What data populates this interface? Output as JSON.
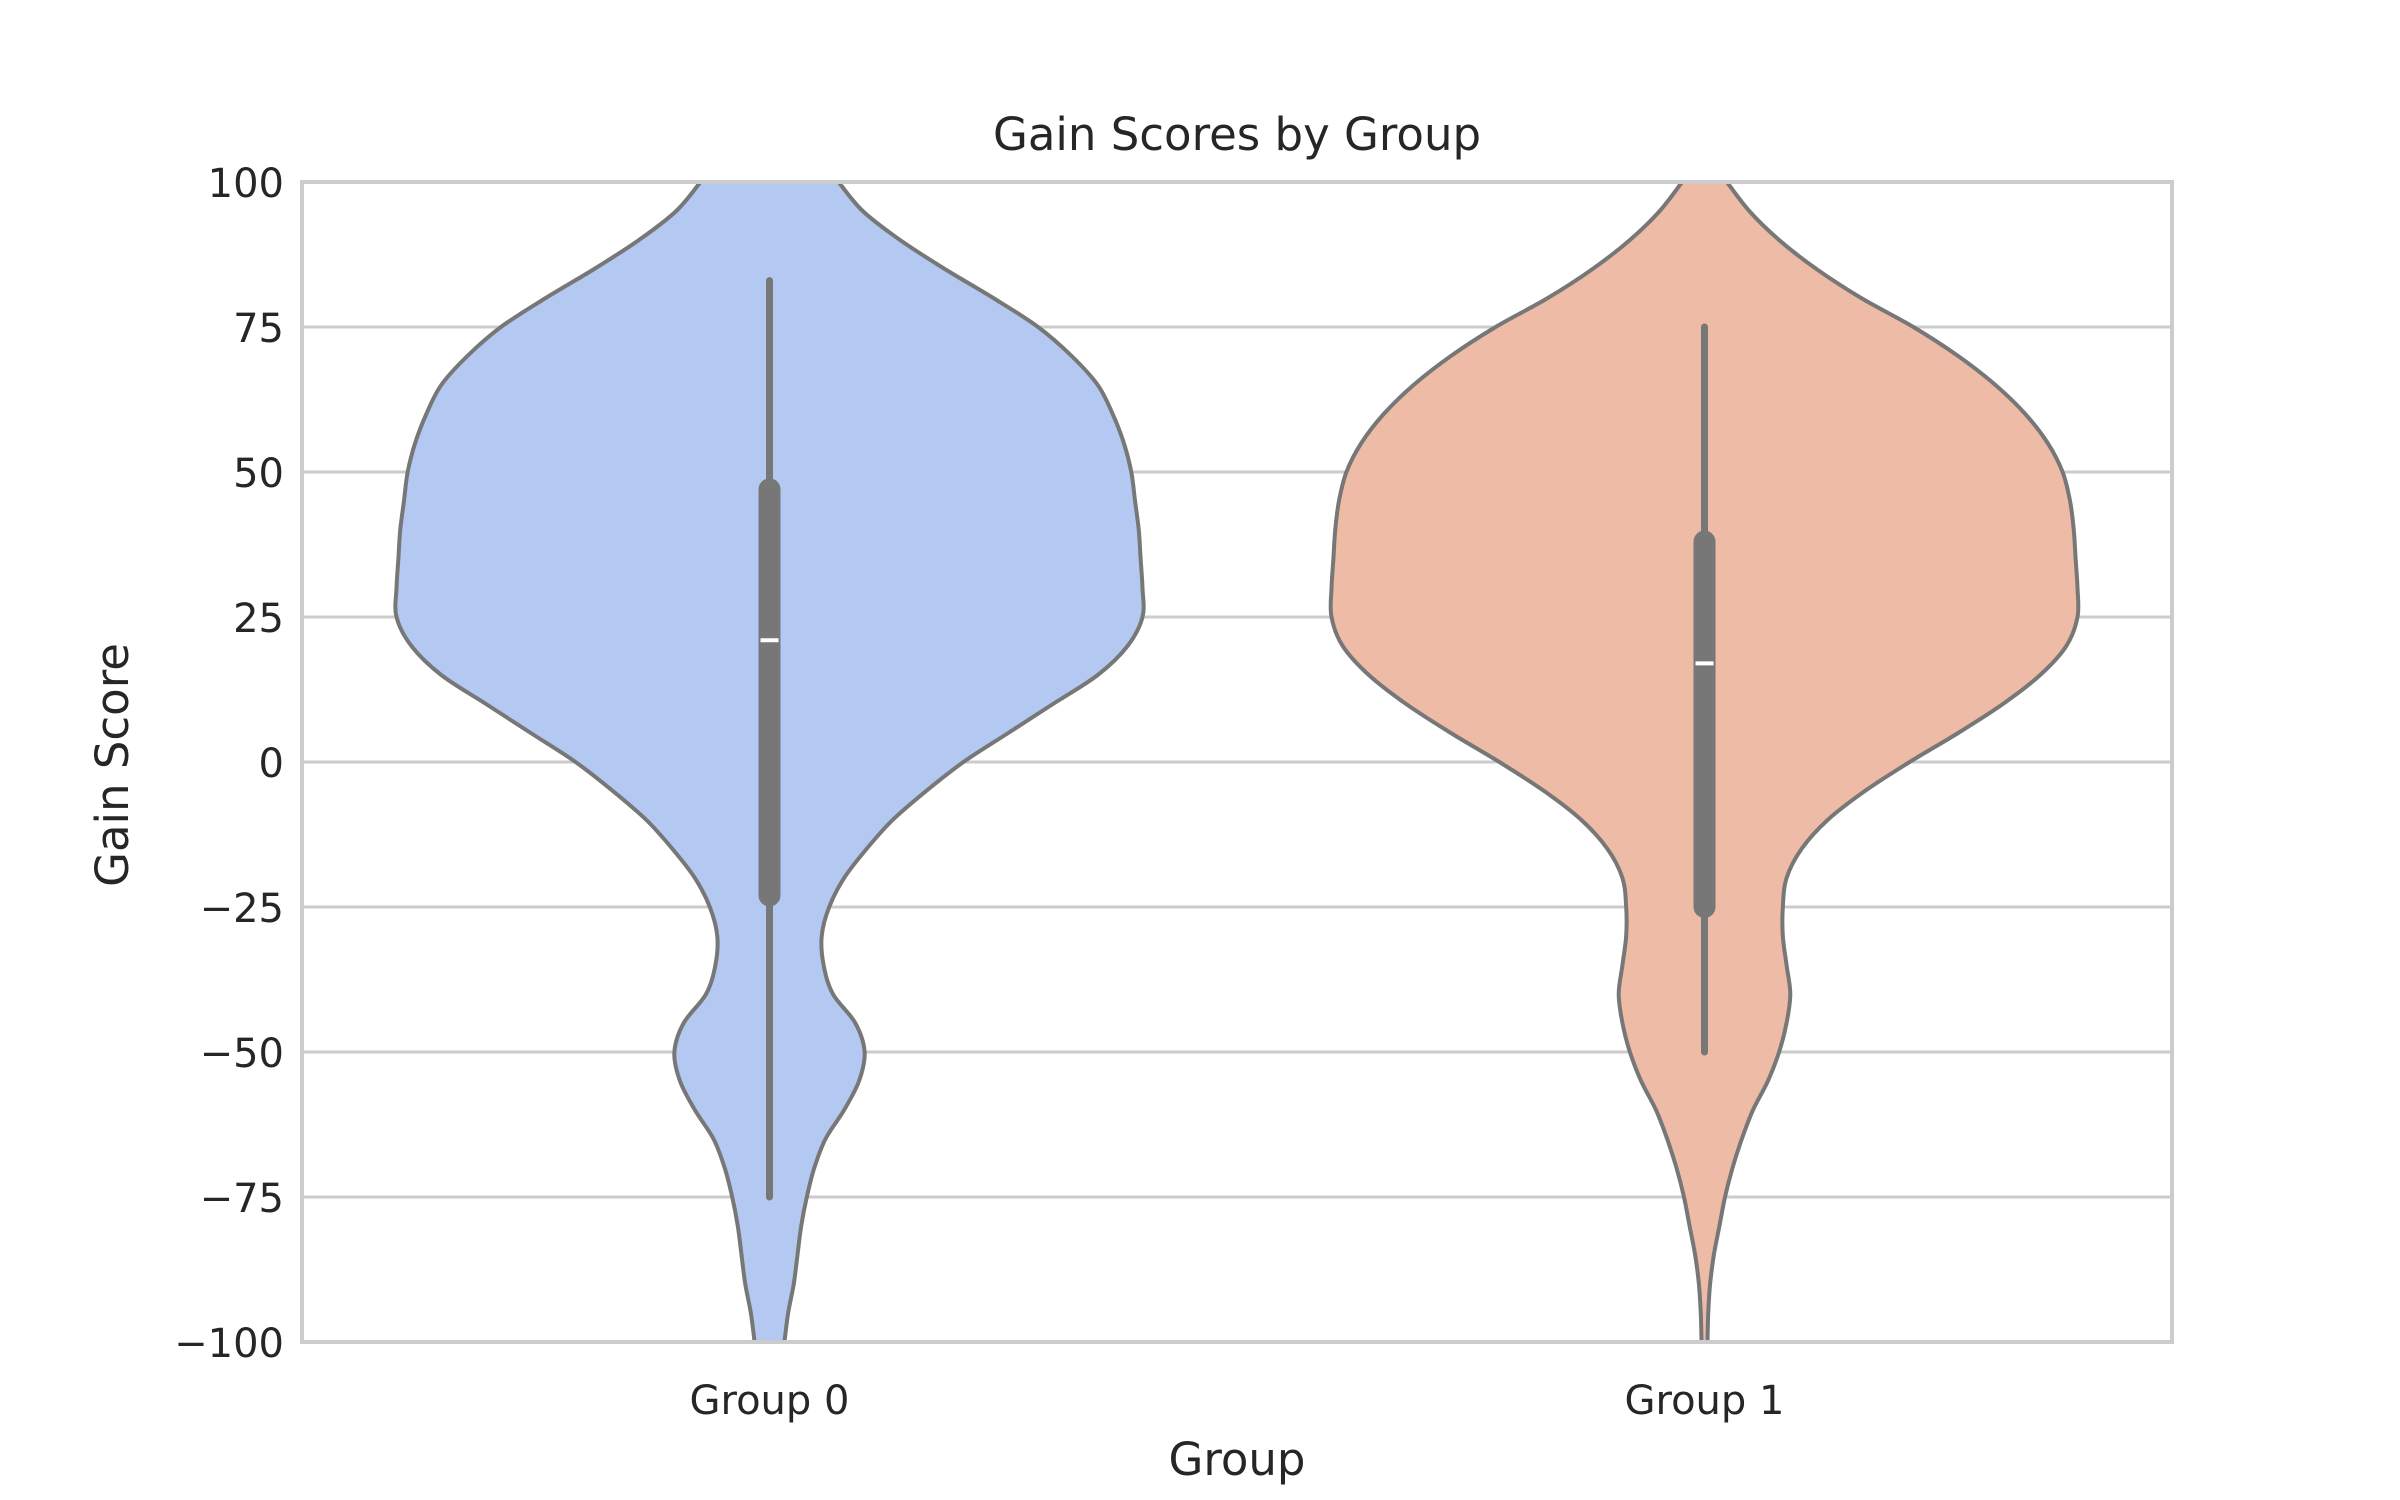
{
  "chart_data": {
    "type": "violin",
    "title": "Gain Scores by Group",
    "xlabel": "Group",
    "ylabel": "Gain Score",
    "ylim": [
      -100,
      100
    ],
    "yticks": [
      -100,
      -75,
      -50,
      -25,
      0,
      25,
      50,
      75,
      100
    ],
    "ytick_labels": [
      "−100",
      "−75",
      "−50",
      "−25",
      "0",
      "25",
      "50",
      "75",
      "100"
    ],
    "grid": "horizontal",
    "categories": [
      "Group 0",
      "Group 1"
    ],
    "groups": [
      {
        "name": "Group 0",
        "color": "#b3c9f2",
        "median": 21,
        "q1": -23,
        "q3": 47,
        "whisker_low": -75,
        "whisker_high": 83,
        "density_profile": [
          [
            100,
            0.185
          ],
          [
            95,
            0.25
          ],
          [
            90,
            0.35
          ],
          [
            85,
            0.47
          ],
          [
            80,
            0.6
          ],
          [
            75,
            0.72
          ],
          [
            70,
            0.81
          ],
          [
            65,
            0.88
          ],
          [
            60,
            0.92
          ],
          [
            55,
            0.95
          ],
          [
            50,
            0.97
          ],
          [
            45,
            0.98
          ],
          [
            40,
            0.99
          ],
          [
            35,
            0.995
          ],
          [
            30,
            1.0
          ],
          [
            25,
            1.0
          ],
          [
            20,
            0.96
          ],
          [
            15,
            0.88
          ],
          [
            10,
            0.76
          ],
          [
            5,
            0.64
          ],
          [
            0,
            0.52
          ],
          [
            -5,
            0.42
          ],
          [
            -10,
            0.33
          ],
          [
            -15,
            0.26
          ],
          [
            -20,
            0.2
          ],
          [
            -25,
            0.16
          ],
          [
            -30,
            0.14
          ],
          [
            -35,
            0.145
          ],
          [
            -40,
            0.17
          ],
          [
            -45,
            0.23
          ],
          [
            -50,
            0.255
          ],
          [
            -55,
            0.24
          ],
          [
            -60,
            0.2
          ],
          [
            -65,
            0.15
          ],
          [
            -70,
            0.12
          ],
          [
            -75,
            0.1
          ],
          [
            -80,
            0.085
          ],
          [
            -85,
            0.075
          ],
          [
            -90,
            0.065
          ],
          [
            -95,
            0.05
          ],
          [
            -100,
            0.04
          ]
        ]
      },
      {
        "name": "Group 1",
        "color": "#edbba6",
        "median": 17,
        "q1": -25,
        "q3": 38,
        "whisker_low": -50,
        "whisker_high": 75,
        "density_profile": [
          [
            100,
            0.06
          ],
          [
            95,
            0.12
          ],
          [
            90,
            0.2
          ],
          [
            85,
            0.3
          ],
          [
            80,
            0.42
          ],
          [
            75,
            0.56
          ],
          [
            70,
            0.68
          ],
          [
            65,
            0.78
          ],
          [
            60,
            0.86
          ],
          [
            55,
            0.92
          ],
          [
            50,
            0.96
          ],
          [
            45,
            0.98
          ],
          [
            40,
            0.99
          ],
          [
            35,
            0.995
          ],
          [
            30,
            1.0
          ],
          [
            25,
            1.0
          ],
          [
            20,
            0.97
          ],
          [
            15,
            0.9
          ],
          [
            10,
            0.8
          ],
          [
            5,
            0.68
          ],
          [
            0,
            0.55
          ],
          [
            -5,
            0.43
          ],
          [
            -10,
            0.33
          ],
          [
            -15,
            0.26
          ],
          [
            -20,
            0.22
          ],
          [
            -25,
            0.21
          ],
          [
            -30,
            0.21
          ],
          [
            -35,
            0.22
          ],
          [
            -40,
            0.23
          ],
          [
            -45,
            0.22
          ],
          [
            -50,
            0.2
          ],
          [
            -55,
            0.17
          ],
          [
            -60,
            0.13
          ],
          [
            -65,
            0.1
          ],
          [
            -70,
            0.075
          ],
          [
            -75,
            0.055
          ],
          [
            -80,
            0.04
          ],
          [
            -85,
            0.025
          ],
          [
            -90,
            0.015
          ],
          [
            -95,
            0.01
          ],
          [
            -100,
            0.008
          ]
        ]
      }
    ]
  }
}
